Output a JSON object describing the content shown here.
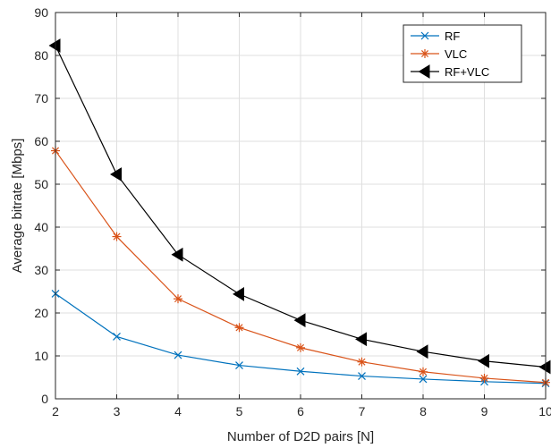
{
  "chart_data": {
    "type": "line",
    "xlabel": "Number of D2D pairs [N]",
    "ylabel": "Average bitrate [Mbps]",
    "xlim": [
      2,
      10
    ],
    "ylim": [
      0,
      90
    ],
    "xticks": [
      2,
      3,
      4,
      5,
      6,
      7,
      8,
      9,
      10
    ],
    "yticks": [
      0,
      10,
      20,
      30,
      40,
      50,
      60,
      70,
      80,
      90
    ],
    "grid": true,
    "legend_position": "top-right",
    "x": [
      2,
      3,
      4,
      5,
      6,
      7,
      8,
      9,
      10
    ],
    "series": [
      {
        "name": "RF",
        "color": "#0072BD",
        "marker": "x",
        "values": [
          24.5,
          14.5,
          10.2,
          7.8,
          6.4,
          5.3,
          4.6,
          4.0,
          3.6
        ]
      },
      {
        "name": "VLC",
        "color": "#D95319",
        "marker": "asterisk",
        "values": [
          57.8,
          37.8,
          23.3,
          16.6,
          11.9,
          8.6,
          6.3,
          4.8,
          3.8
        ]
      },
      {
        "name": "RF+VLC",
        "color": "#000000",
        "marker": "triangle-left",
        "values": [
          82.3,
          52.3,
          33.6,
          24.4,
          18.3,
          13.9,
          11.0,
          8.8,
          7.4
        ]
      }
    ]
  }
}
